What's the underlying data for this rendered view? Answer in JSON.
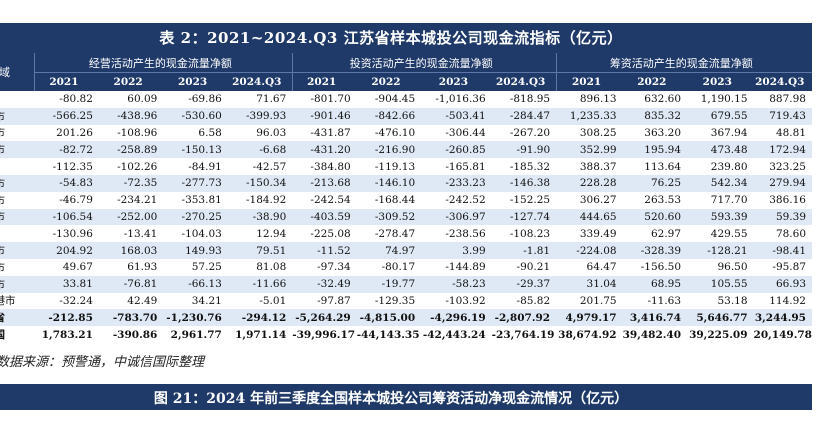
{
  "table_title": "表 2：2021~2024.Q3 江苏省样本城投公司现金流指标（亿元）",
  "headers": {
    "region": "区域",
    "groups": [
      "经营活动产生的现金流量净额",
      "投资活动产生的现金流量净额",
      "筹资活动产生的现金流量净额"
    ],
    "years": [
      "2021",
      "2022",
      "2023",
      "2024.Q3",
      "2021",
      "2022",
      "2023",
      "2024.Q3",
      "2021",
      "2022",
      "2023",
      "2024.Q3"
    ]
  },
  "rows": [
    {
      "region": "市",
      "values": [
        "-80.82",
        "60.09",
        "-69.86",
        "71.67",
        "-801.70",
        "-904.45",
        "-1,016.36",
        "-818.95",
        "896.13",
        "632.60",
        "1,190.15",
        "887.98"
      ]
    },
    {
      "region": "州市",
      "values": [
        "-566.25",
        "-438.96",
        "-530.60",
        "-399.93",
        "-901.46",
        "-842.66",
        "-503.41",
        "-284.47",
        "1,235.33",
        "835.32",
        "679.55",
        "719.43"
      ]
    },
    {
      "region": "锡市",
      "values": [
        "201.26",
        "-108.96",
        "6.58",
        "96.03",
        "-431.87",
        "-476.10",
        "-306.44",
        "-267.20",
        "308.25",
        "363.20",
        "367.94",
        "48.81"
      ]
    },
    {
      "region": "通市",
      "values": [
        "-82.72",
        "-258.89",
        "-150.13",
        "-6.68",
        "-431.20",
        "-216.90",
        "-260.85",
        "-91.90",
        "352.99",
        "195.94",
        "473.48",
        "172.94"
      ]
    },
    {
      "region": "市",
      "values": [
        "-112.35",
        "-102.26",
        "-84.91",
        "-42.57",
        "-384.80",
        "-119.13",
        "-165.81",
        "-185.32",
        "388.37",
        "113.64",
        "239.80",
        "323.25"
      ]
    },
    {
      "region": "州市",
      "values": [
        "-54.83",
        "-72.35",
        "-277.73",
        "-150.34",
        "-213.68",
        "-146.10",
        "-233.23",
        "-146.38",
        "228.28",
        "76.25",
        "542.34",
        "279.94"
      ]
    },
    {
      "region": "州市",
      "values": [
        "-46.79",
        "-234.21",
        "-353.81",
        "-184.92",
        "-242.54",
        "-168.44",
        "-242.52",
        "-152.25",
        "306.27",
        "263.53",
        "717.70",
        "386.16"
      ]
    },
    {
      "region": "城市",
      "values": [
        "-106.54",
        "-252.00",
        "-270.25",
        "-38.90",
        "-403.59",
        "-309.52",
        "-306.97",
        "-127.74",
        "444.65",
        "520.60",
        "593.39",
        "59.39"
      ]
    },
    {
      "region": "市",
      "values": [
        "-130.96",
        "-13.41",
        "-104.03",
        "12.94",
        "-225.08",
        "-278.47",
        "-238.56",
        "-108.23",
        "339.49",
        "62.97",
        "429.55",
        "78.60"
      ]
    },
    {
      "region": "州市",
      "values": [
        "204.92",
        "168.03",
        "149.93",
        "79.51",
        "-11.52",
        "74.97",
        "3.99",
        "-1.81",
        "-224.08",
        "-328.39",
        "-128.21",
        "-98.41"
      ]
    },
    {
      "region": "安市",
      "values": [
        "49.67",
        "61.93",
        "57.25",
        "81.08",
        "-97.34",
        "-80.17",
        "-144.89",
        "-90.21",
        "64.47",
        "-156.50",
        "96.50",
        "-95.87"
      ]
    },
    {
      "region": "迁市",
      "values": [
        "33.81",
        "-76.81",
        "-66.13",
        "-11.66",
        "-32.49",
        "-19.77",
        "-58.23",
        "-29.37",
        "31.04",
        "68.95",
        "105.55",
        "66.93"
      ]
    },
    {
      "region": "云港市",
      "values": [
        "-32.24",
        "42.49",
        "34.21",
        "-5.01",
        "-97.87",
        "-129.35",
        "-103.92",
        "-85.82",
        "201.75",
        "-11.63",
        "53.18",
        "114.92"
      ]
    },
    {
      "region": "苏省",
      "total": true,
      "values": [
        "-212.85",
        "-783.70",
        "-1,230.76",
        "-294.12",
        "-5,264.29",
        "-4,815.00",
        "-4,296.19",
        "-2,807.92",
        "4,979.17",
        "3,416.74",
        "5,646.77",
        "3,244.95"
      ]
    },
    {
      "region": "全国",
      "total": true,
      "values": [
        "1,783.21",
        "-390.86",
        "2,961.77",
        "1,971.14",
        "-39,996.17",
        "-44,143.35",
        "-42,443.24",
        "-23,764.19",
        "38,674.92",
        "39,482.40",
        "39,225.09",
        "20,149.78"
      ]
    }
  ],
  "source": "数据来源：预警通，中诚信国际整理",
  "next_figure_title": "图 21：2024 年前三季度全国样本城投公司筹资活动净现金流情况（亿元）",
  "colors": {
    "header_bg": "#1f3a68",
    "stripe": "#dfe9f6"
  }
}
